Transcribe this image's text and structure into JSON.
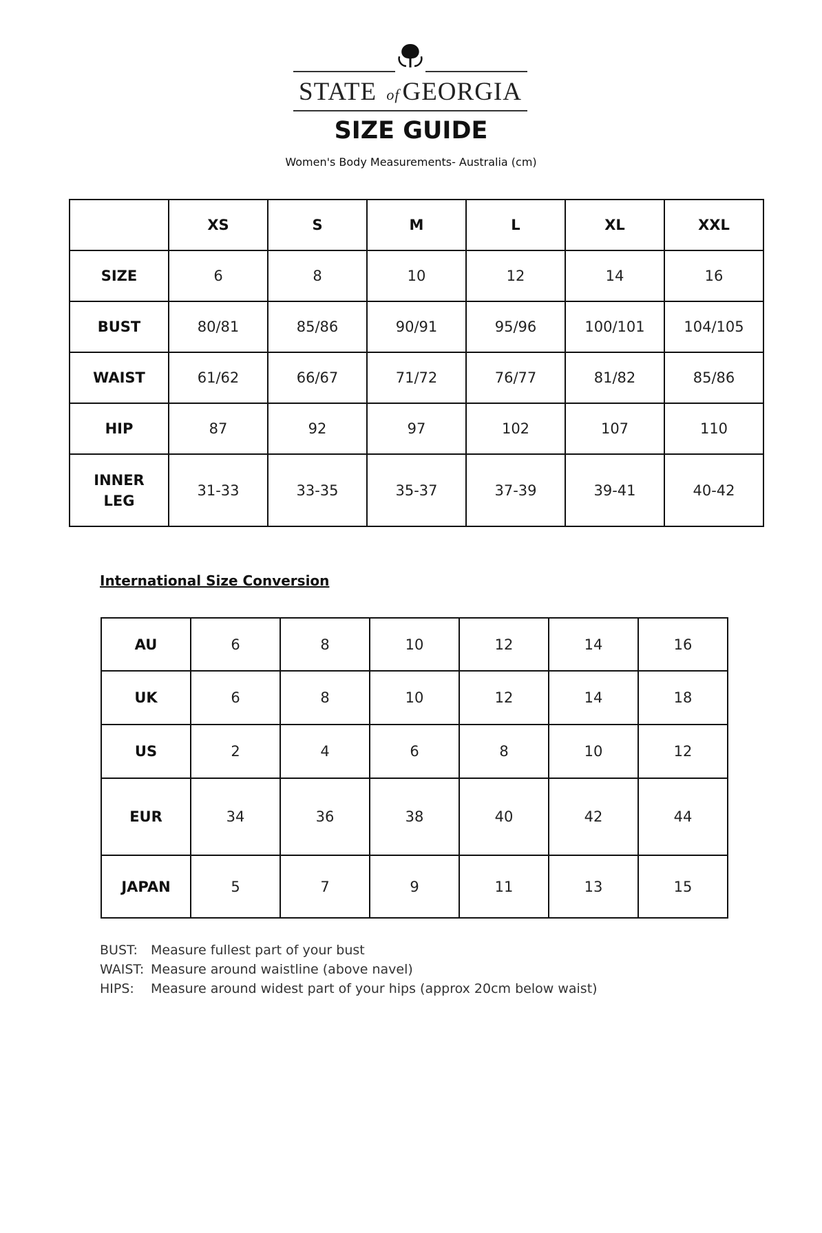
{
  "logo": {
    "brand_left": "STATE",
    "brand_mid": "of",
    "brand_right": "GEORGIA",
    "icon": "tree-icon"
  },
  "title": "SIZE GUIDE",
  "subtitle": "Women's Body Measurements- Australia (cm)",
  "body_table": {
    "columns": [
      "",
      "XS",
      "S",
      "M",
      "L",
      "XL",
      "XXL"
    ],
    "rows": [
      {
        "label": "SIZE",
        "values": [
          "6",
          "8",
          "10",
          "12",
          "14",
          "16"
        ]
      },
      {
        "label": "BUST",
        "values": [
          "80/81",
          "85/86",
          "90/91",
          "95/96",
          "100/101",
          "104/105"
        ]
      },
      {
        "label": "WAIST",
        "values": [
          "61/62",
          "66/67",
          "71/72",
          "76/77",
          "81/82",
          "85/86"
        ]
      },
      {
        "label": "HIP",
        "values": [
          "87",
          "92",
          "97",
          "102",
          "107",
          "110"
        ]
      },
      {
        "label": "INNER LEG",
        "values": [
          "31-33",
          "33-35",
          "35-37",
          "37-39",
          "39-41",
          "40-42"
        ]
      }
    ]
  },
  "conversion_heading": "International Size Conversion",
  "conversion_table": {
    "rows": [
      {
        "label": "AU",
        "values": [
          "6",
          "8",
          "10",
          "12",
          "14",
          "16"
        ]
      },
      {
        "label": "UK",
        "values": [
          "6",
          "8",
          "10",
          "12",
          "14",
          "18"
        ]
      },
      {
        "label": "US",
        "values": [
          "2",
          "4",
          "6",
          "8",
          "10",
          "12"
        ]
      },
      {
        "label": "EUR",
        "values": [
          "34",
          "36",
          "38",
          "40",
          "42",
          "44"
        ]
      },
      {
        "label": "JAPAN",
        "values": [
          "5",
          "7",
          "9",
          "11",
          "13",
          "15"
        ]
      }
    ]
  },
  "notes": [
    {
      "label": "BUST:",
      "text": "Measure fullest part of your bust"
    },
    {
      "label": "WAIST:",
      "text": "Measure around waistline (above navel)"
    },
    {
      "label": "HIPS:",
      "text": "Measure around widest part of your hips (approx 20cm below waist)"
    }
  ]
}
